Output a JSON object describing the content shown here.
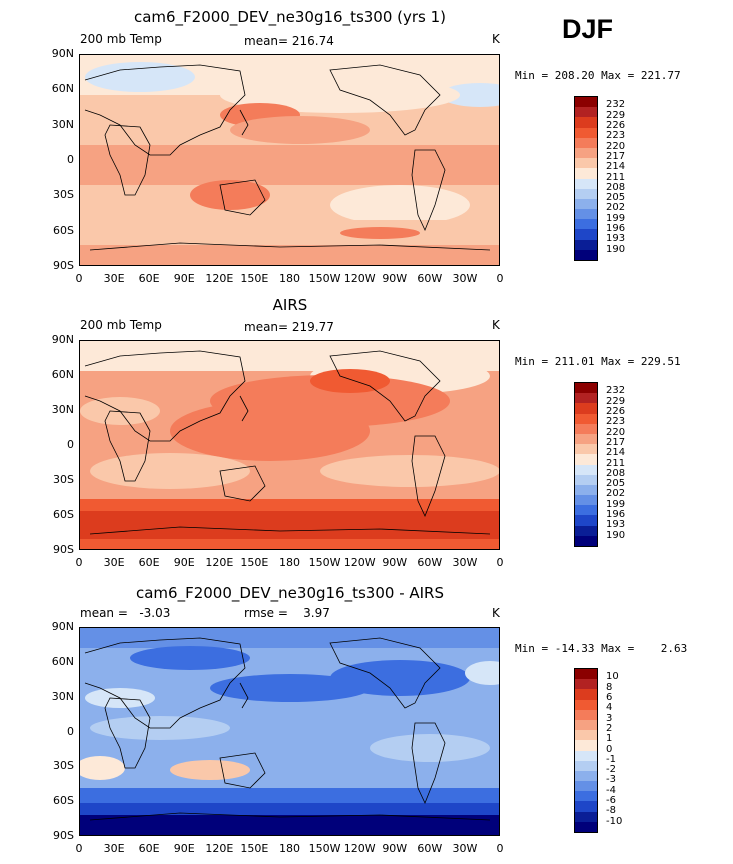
{
  "season": "DJF",
  "panels": [
    {
      "title": "cam6_F2000_DEV_ne30g16_ts300 (yrs 1)",
      "left_label": "200 mb Temp",
      "mid_label": "mean= 216.74",
      "unit": "K",
      "minmax": "Min = 208.20 Max = 221.77"
    },
    {
      "title": "AIRS",
      "left_label": "200 mb Temp",
      "mid_label": "mean= 219.77",
      "unit": "K",
      "minmax": "Min = 211.01 Max = 229.51"
    },
    {
      "title": "cam6_F2000_DEV_ne30g16_ts300 - AIRS",
      "left_label": "mean =   -3.03",
      "mid_label": "rmse =    3.97",
      "unit": "K",
      "minmax": "Min = -14.33 Max =    2.63"
    }
  ],
  "lat_ticks": [
    "90N",
    "60N",
    "30N",
    "0",
    "30S",
    "60S",
    "90S"
  ],
  "lon_ticks": [
    "0",
    "30E",
    "60E",
    "90E",
    "120E",
    "150E",
    "180",
    "150W",
    "120W",
    "90W",
    "60W",
    "30W",
    "0"
  ],
  "colorbar_abs": {
    "labels": [
      "232",
      "229",
      "226",
      "223",
      "220",
      "217",
      "214",
      "211",
      "208",
      "205",
      "202",
      "199",
      "196",
      "193",
      "190"
    ],
    "colors": [
      "#8b0000",
      "#b22222",
      "#dc3c1e",
      "#f05a32",
      "#f47c5a",
      "#f6a282",
      "#fac8aa",
      "#fde9d8",
      "#d6e6f8",
      "#b4cef2",
      "#8cb0ec",
      "#6490e6",
      "#3c6ee0",
      "#1e46c8",
      "#0a1e96",
      "#00007a"
    ]
  },
  "colorbar_diff": {
    "labels": [
      "10",
      "8",
      "6",
      "4",
      "3",
      "2",
      "1",
      "0",
      "-1",
      "-2",
      "-3",
      "-4",
      "-6",
      "-8",
      "-10"
    ],
    "colors": [
      "#8b0000",
      "#b22222",
      "#dc3c1e",
      "#f05a32",
      "#f47c5a",
      "#f6a282",
      "#fac8aa",
      "#fde9d8",
      "#d6e6f8",
      "#b4cef2",
      "#8cb0ec",
      "#6490e6",
      "#3c6ee0",
      "#1e46c8",
      "#0a1e96",
      "#00007a"
    ]
  },
  "chart_data": [
    {
      "type": "heatmap",
      "title": "cam6_F2000_DEV_ne30g16_ts300 (yrs 1)",
      "variable": "200 mb Temp",
      "units": "K",
      "mean": 216.74,
      "min": 208.2,
      "max": 221.77,
      "x_range": [
        0,
        360
      ],
      "y_range": [
        -90,
        90
      ],
      "contour_levels": [
        190,
        193,
        196,
        199,
        202,
        205,
        208,
        211,
        214,
        217,
        220,
        223,
        226,
        229,
        232
      ]
    },
    {
      "type": "heatmap",
      "title": "AIRS",
      "variable": "200 mb Temp",
      "units": "K",
      "mean": 219.77,
      "min": 211.01,
      "max": 229.51,
      "x_range": [
        0,
        360
      ],
      "y_range": [
        -90,
        90
      ],
      "contour_levels": [
        190,
        193,
        196,
        199,
        202,
        205,
        208,
        211,
        214,
        217,
        220,
        223,
        226,
        229,
        232
      ]
    },
    {
      "type": "heatmap",
      "title": "cam6_F2000_DEV_ne30g16_ts300 - AIRS",
      "units": "K",
      "mean": -3.03,
      "rmse": 3.97,
      "min": -14.33,
      "max": 2.63,
      "x_range": [
        0,
        360
      ],
      "y_range": [
        -90,
        90
      ],
      "contour_levels": [
        -10,
        -8,
        -6,
        -4,
        -3,
        -2,
        -1,
        0,
        1,
        2,
        3,
        4,
        6,
        8,
        10
      ]
    }
  ]
}
